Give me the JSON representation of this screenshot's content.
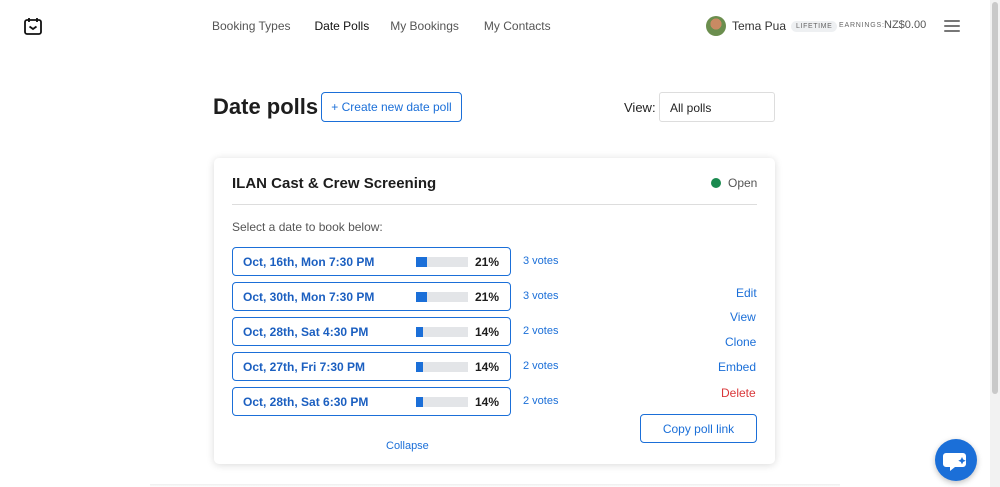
{
  "nav": {
    "items": [
      "Booking Types",
      "Date Polls",
      "My Bookings",
      "My Contacts"
    ],
    "active": "Date Polls"
  },
  "user": {
    "name": "Tema Pua",
    "plan_badge": "LIFETIME",
    "earnings_label": "EARNINGS:",
    "earnings_value": "NZ$0.00"
  },
  "header": {
    "title": "Date polls",
    "create_label": "+ Create new date poll",
    "view_label": "View:",
    "view_selected": "All polls"
  },
  "poll": {
    "title": "ILAN Cast & Crew Screening",
    "status": "Open",
    "instruction": "Select a date to book below:",
    "options": [
      {
        "date": "Oct, 16th, Mon 7:30 PM",
        "percent": "21%",
        "fraction": 0.21,
        "votes": "3 votes"
      },
      {
        "date": "Oct, 30th, Mon 7:30 PM",
        "percent": "21%",
        "fraction": 0.21,
        "votes": "3 votes"
      },
      {
        "date": "Oct, 28th, Sat 4:30 PM",
        "percent": "14%",
        "fraction": 0.14,
        "votes": "2 votes"
      },
      {
        "date": "Oct, 27th, Fri 7:30 PM",
        "percent": "14%",
        "fraction": 0.14,
        "votes": "2 votes"
      },
      {
        "date": "Oct, 28th, Sat 6:30 PM",
        "percent": "14%",
        "fraction": 0.14,
        "votes": "2 votes"
      }
    ],
    "actions": {
      "edit": "Edit",
      "view": "View",
      "clone": "Clone",
      "embed": "Embed",
      "delete": "Delete"
    },
    "copy_link_label": "Copy poll link",
    "collapse_label": "Collapse"
  },
  "colors": {
    "accent": "#1b6fd8",
    "open_status": "#1a8a4f",
    "delete": "#d9383a"
  },
  "icons": {
    "logo": "calendar-check-icon",
    "menu": "hamburger-menu-icon",
    "chat": "chat-support-icon"
  }
}
